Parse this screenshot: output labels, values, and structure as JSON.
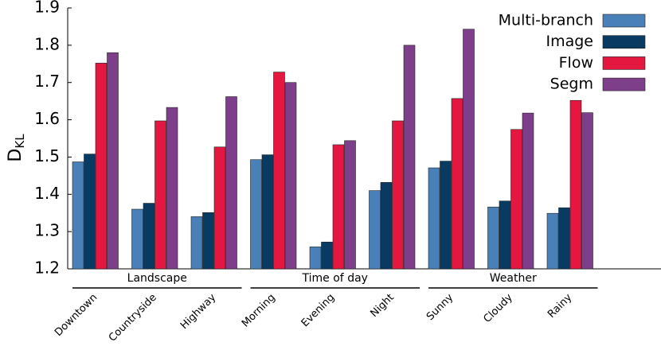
{
  "chart_data": {
    "type": "bar",
    "y_label": "D",
    "y_label_subscript": "KL",
    "categories": [
      "Downtown",
      "Countryside",
      "Highway",
      "Morning",
      "Evening",
      "Night",
      "Sunny",
      "Cloudy",
      "Rainy"
    ],
    "groups": [
      "Landscape",
      "Time of day",
      "Weather"
    ],
    "series": [
      {
        "name": "Multi-branch",
        "color": "#4a80b8",
        "values": [
          1.487,
          1.36,
          1.34,
          1.493,
          1.259,
          1.41,
          1.471,
          1.366,
          1.349
        ]
      },
      {
        "name": "Image",
        "color": "#083a62",
        "values": [
          1.508,
          1.376,
          1.351,
          1.506,
          1.272,
          1.432,
          1.489,
          1.382,
          1.364
        ]
      },
      {
        "name": "Flow",
        "color": "#e3173f",
        "values": [
          1.752,
          1.597,
          1.527,
          1.728,
          1.533,
          1.597,
          1.657,
          1.574,
          1.652
        ]
      },
      {
        "name": "Segm",
        "color": "#7d3f8a",
        "values": [
          1.78,
          1.633,
          1.662,
          1.7,
          1.544,
          1.8,
          1.843,
          1.618,
          1.619
        ]
      }
    ],
    "ylim": [
      1.2,
      1.9
    ],
    "yticks": [
      1.2,
      1.3,
      1.4,
      1.5,
      1.6,
      1.7,
      1.8,
      1.9
    ],
    "legend": "upper right"
  }
}
